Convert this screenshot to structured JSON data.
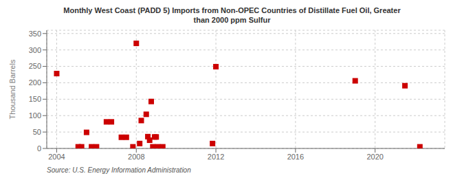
{
  "chart_data": {
    "type": "scatter",
    "title": "Monthly West Coast (PADD 5) Imports from Non-OPEC Countries of Distillate Fuel Oil, Greater\nthan 2000 ppm Sulfur",
    "ylabel": "Thousand Barrels",
    "annotations": [
      "Source: U.S. Energy Information Administration"
    ],
    "x": [
      2004.0,
      2005.08,
      2005.25,
      2005.5,
      2005.75,
      2006.0,
      2006.5,
      2006.75,
      2007.25,
      2007.5,
      2007.83,
      2008.0,
      2008.17,
      2008.25,
      2008.5,
      2008.58,
      2008.67,
      2008.75,
      2008.83,
      2008.92,
      2009.0,
      2009.08,
      2009.33,
      2011.83,
      2012.0,
      2019.0,
      2021.5,
      2022.25
    ],
    "values": [
      228,
      5,
      5,
      49,
      5,
      5,
      81,
      81,
      34,
      34,
      5,
      320,
      15,
      85,
      104,
      36,
      25,
      143,
      5,
      35,
      35,
      5,
      5,
      15,
      249,
      206,
      191,
      5
    ],
    "color": "#cc0000",
    "marker": "square",
    "xlim": [
      2003.5,
      2023.5
    ],
    "ylim": [
      0,
      360
    ],
    "xticks": [
      2004,
      2008,
      2012,
      2016,
      2020
    ],
    "yticks": [
      0,
      50,
      100,
      150,
      200,
      250,
      300,
      350
    ],
    "grid": true
  }
}
